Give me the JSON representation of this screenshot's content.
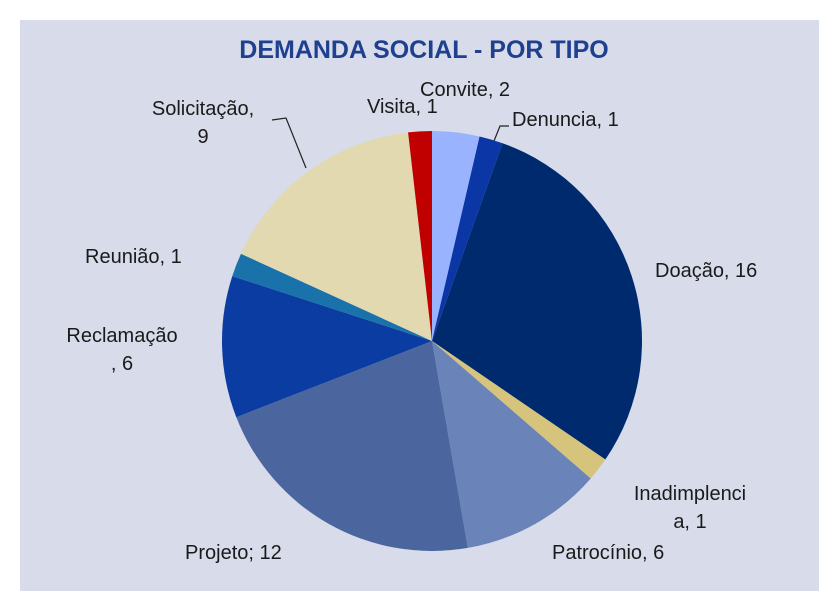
{
  "chart_data": {
    "type": "pie",
    "title": "DEMANDA SOCIAL - POR TIPO",
    "categories": [
      "Convite",
      "Denuncia",
      "Doação",
      "Inadimplencia",
      "Patrocínio",
      "Projeto",
      "Reclamação",
      "Reunião",
      "Solicitação",
      "Visita"
    ],
    "values": [
      2,
      1,
      16,
      1,
      6,
      12,
      6,
      1,
      9,
      1
    ],
    "value_labels": [
      "Convite, 2",
      "Denuncia, 1",
      "Doação, 16",
      "Inadimplenci\na, 1",
      "Patrocínio, 6",
      "Projeto; 12",
      "Reclamação\n, 6",
      "Reunião, 1",
      "Solicitação,\n9",
      "Visita, 1"
    ],
    "colors": [
      "#99b3ff",
      "#0a36a6",
      "#002a6e",
      "#d6c37c",
      "#6a83b8",
      "#4b669e",
      "#0b3ca2",
      "#1a72aa",
      "#e2d9b0",
      "#c00000"
    ]
  }
}
